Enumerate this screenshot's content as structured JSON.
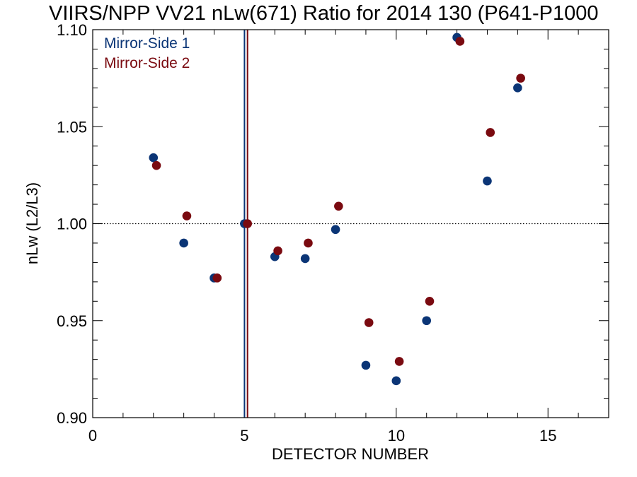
{
  "chart_data": {
    "type": "scatter",
    "title": "VIIRS/NPP VV21 nLw(671) Ratio for 2014 130 (P641-P1000",
    "xlabel": "DETECTOR NUMBER",
    "ylabel": "nLw (L2/L3)",
    "xlim": [
      0,
      17
    ],
    "ylim": [
      0.9,
      1.1
    ],
    "x_ticks": [
      0,
      5,
      10,
      15
    ],
    "x_tick_labels": [
      "0",
      "5",
      "10",
      "15"
    ],
    "y_ticks": [
      0.9,
      0.95,
      1.0,
      1.05,
      1.1
    ],
    "y_tick_labels": [
      "0.90",
      "0.95",
      "1.00",
      "1.05",
      "1.10"
    ],
    "reference_line_y": 1.0,
    "reference_line_style": "dotted",
    "grid": false,
    "legend_position": "top-left",
    "series": [
      {
        "name": "Mirror-Side 1",
        "color": "#0b3576",
        "x": [
          2,
          3,
          4,
          5,
          6,
          7,
          8,
          9,
          10,
          11,
          12,
          13,
          14
        ],
        "y": [
          1.034,
          0.99,
          0.972,
          1.0,
          0.983,
          0.982,
          0.997,
          0.927,
          0.919,
          0.95,
          1.096,
          1.022,
          1.07
        ],
        "vertical_line_x": 5.0
      },
      {
        "name": "Mirror-Side 2",
        "color": "#7a0a10",
        "x": [
          2.1,
          3.1,
          4.1,
          5.1,
          6.1,
          7.1,
          8.1,
          9.1,
          10.1,
          11.1,
          12.1,
          13.1,
          14.1
        ],
        "y": [
          1.03,
          1.004,
          0.972,
          1.0,
          0.986,
          0.99,
          1.009,
          0.949,
          0.929,
          0.96,
          1.094,
          1.047,
          1.075
        ],
        "vertical_line_x": 5.1
      }
    ]
  }
}
